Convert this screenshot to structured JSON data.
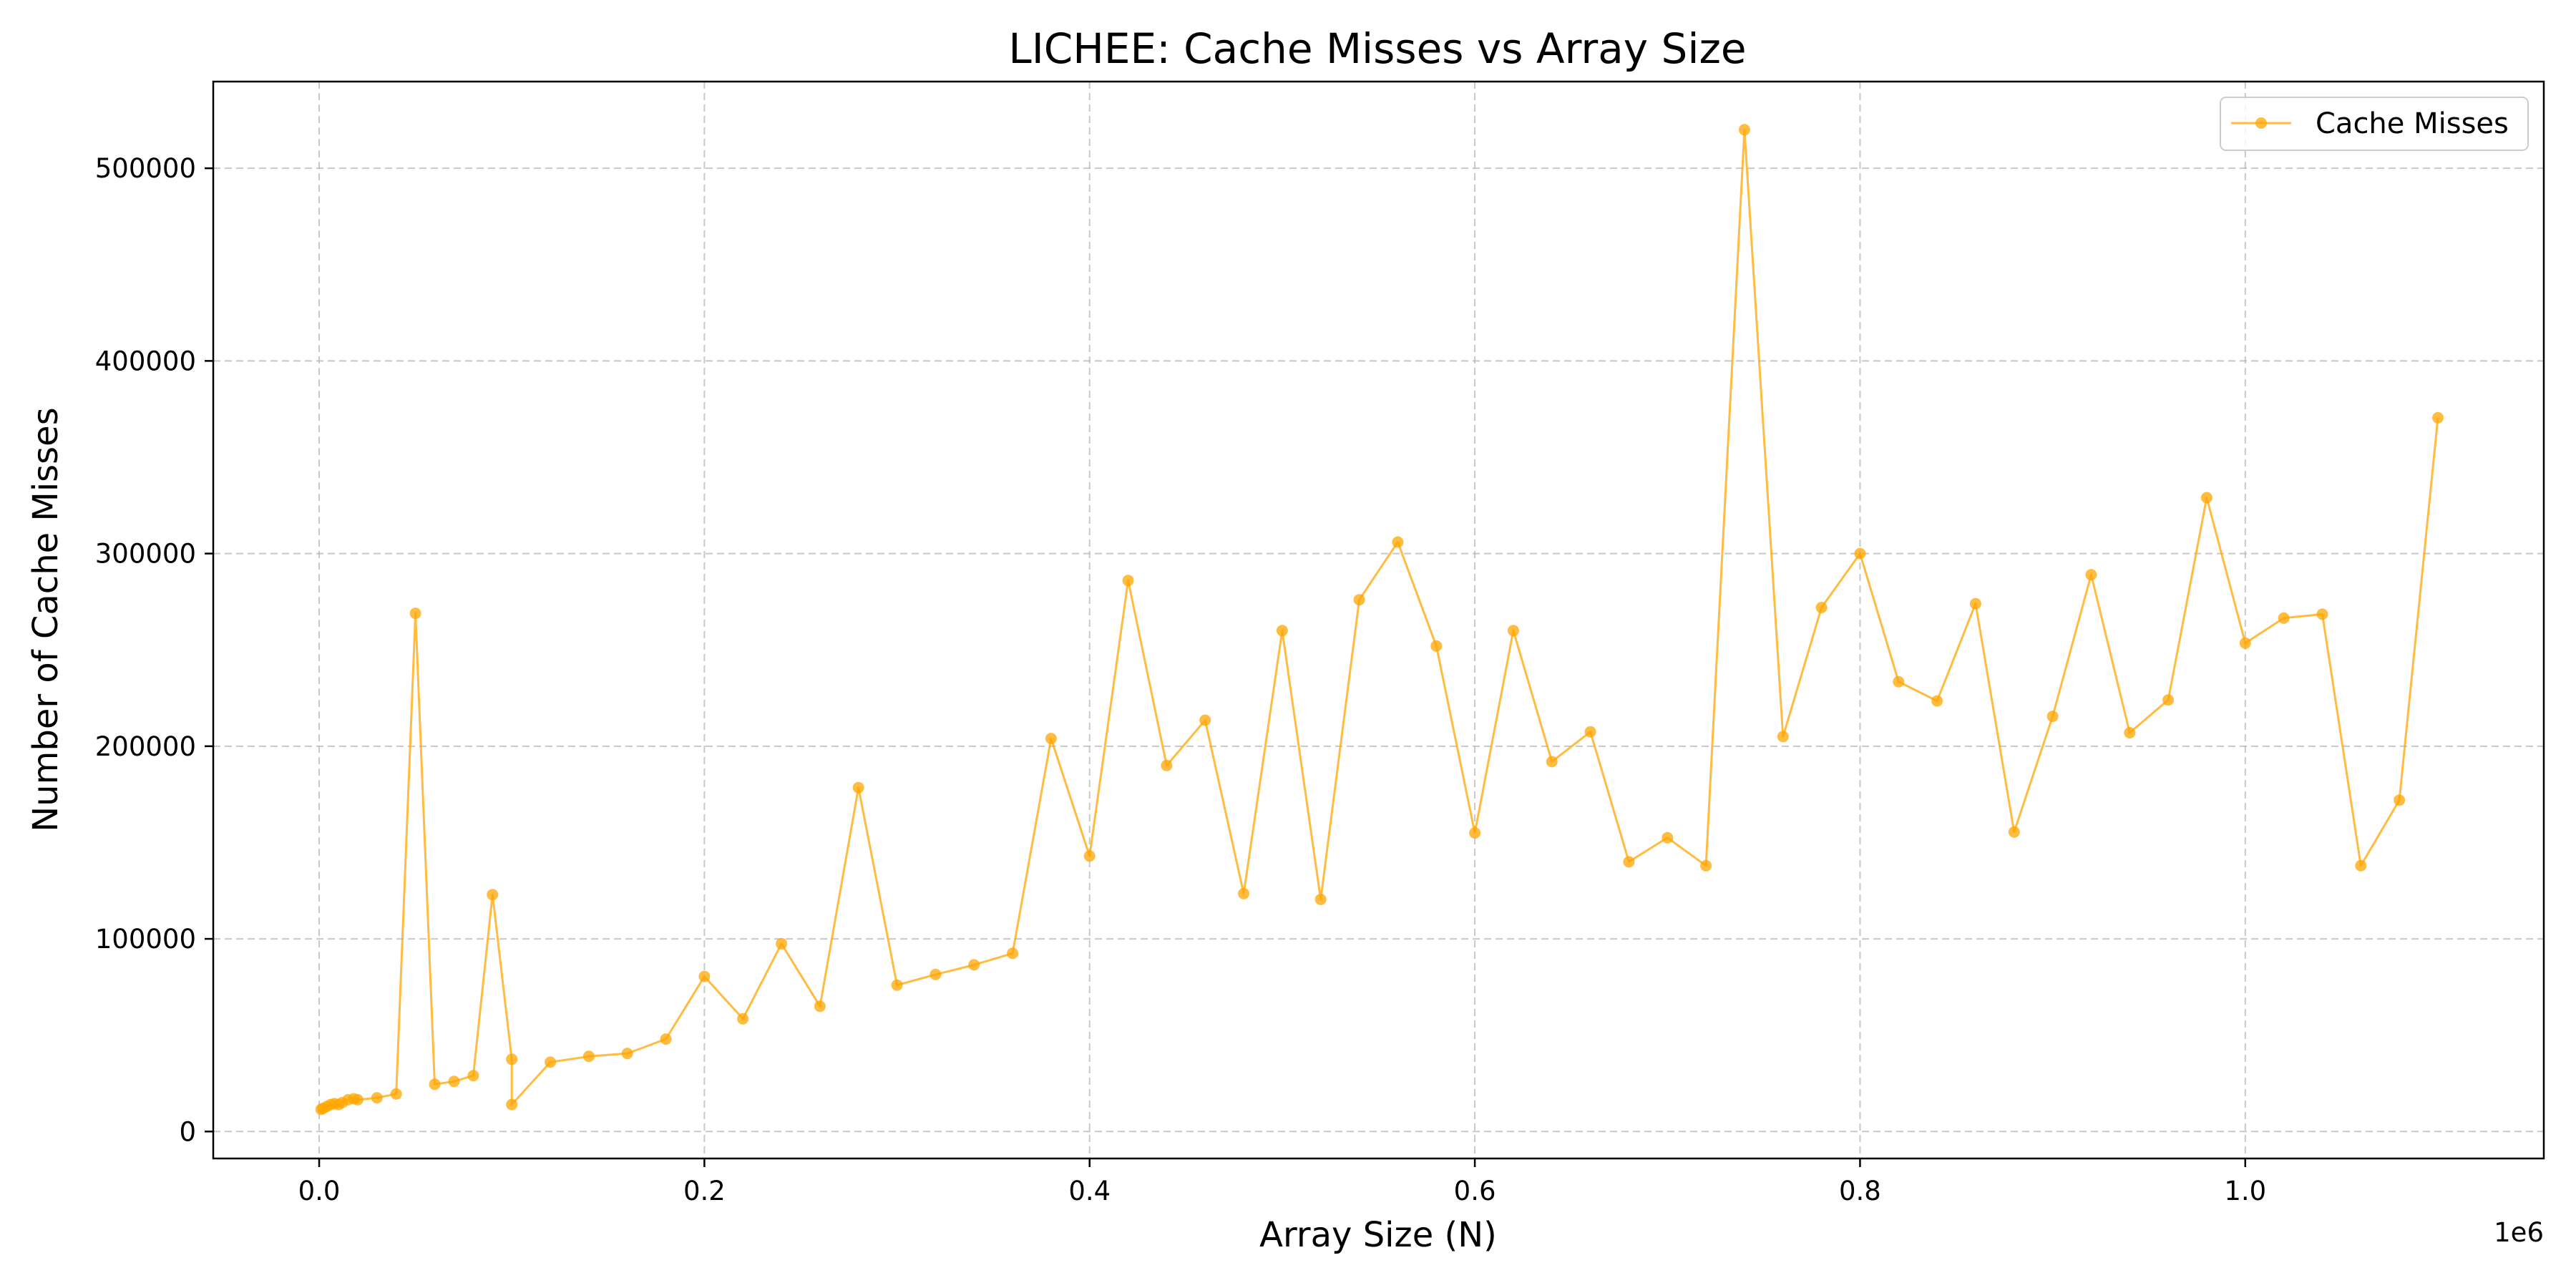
{
  "chart_data": {
    "type": "line",
    "title": "LICHEE: Cache Misses vs Array Size",
    "xlabel": "Array Size (N)",
    "ylabel": "Number of Cache Misses",
    "x_offset_label": "1e6",
    "xlim": [
      -0.055,
      1.155
    ],
    "ylim": [
      -14000,
      545000
    ],
    "x_ticks": [
      0.0,
      0.2,
      0.4,
      0.6,
      0.8,
      1.0
    ],
    "x_tick_labels": [
      "0.0",
      "0.2",
      "0.4",
      "0.6",
      "0.8",
      "1.0"
    ],
    "y_ticks": [
      0,
      100000,
      200000,
      300000,
      400000,
      500000
    ],
    "y_tick_labels": [
      "0",
      "100000",
      "200000",
      "300000",
      "400000",
      "500000"
    ],
    "grid": true,
    "legend_position": "top-right",
    "color": "#ffa500",
    "series": [
      {
        "name": "Cache Misses",
        "x": [
          0.001,
          0.002,
          0.004,
          0.006,
          0.008,
          0.01,
          0.012,
          0.015,
          0.018,
          0.02,
          0.03,
          0.04,
          0.05,
          0.06,
          0.07,
          0.08,
          0.09,
          0.1,
          0.1,
          0.12,
          0.14,
          0.16,
          0.18,
          0.2,
          0.22,
          0.24,
          0.26,
          0.28,
          0.3,
          0.32,
          0.34,
          0.36,
          0.38,
          0.4,
          0.42,
          0.44,
          0.46,
          0.48,
          0.5,
          0.52,
          0.54,
          0.56,
          0.58,
          0.6,
          0.62,
          0.64,
          0.66,
          0.68,
          0.7,
          0.72,
          0.74,
          0.76,
          0.78,
          0.8,
          0.82,
          0.84,
          0.86,
          0.88,
          0.9,
          0.92,
          0.94,
          0.96,
          0.98,
          1.0,
          1.02,
          1.04,
          1.06,
          1.08,
          1.1
        ],
        "y": [
          11500,
          12000,
          13000,
          14000,
          14500,
          14000,
          15000,
          16500,
          17000,
          16500,
          17500,
          19500,
          269000,
          24500,
          26000,
          29000,
          123000,
          37500,
          14000,
          36000,
          39000,
          40500,
          48000,
          80500,
          58500,
          97500,
          65000,
          178500,
          76000,
          81500,
          86500,
          92500,
          204000,
          143000,
          286000,
          190000,
          213500,
          123500,
          260000,
          120500,
          276000,
          306000,
          252000,
          155000,
          260000,
          192000,
          207500,
          140000,
          152500,
          138000,
          520000,
          205000,
          272000,
          300000,
          233500,
          223500,
          274000,
          155500,
          215500,
          289000,
          207000,
          224000,
          329000,
          253500,
          266500,
          268500,
          138000,
          172000,
          370500
        ]
      }
    ]
  }
}
